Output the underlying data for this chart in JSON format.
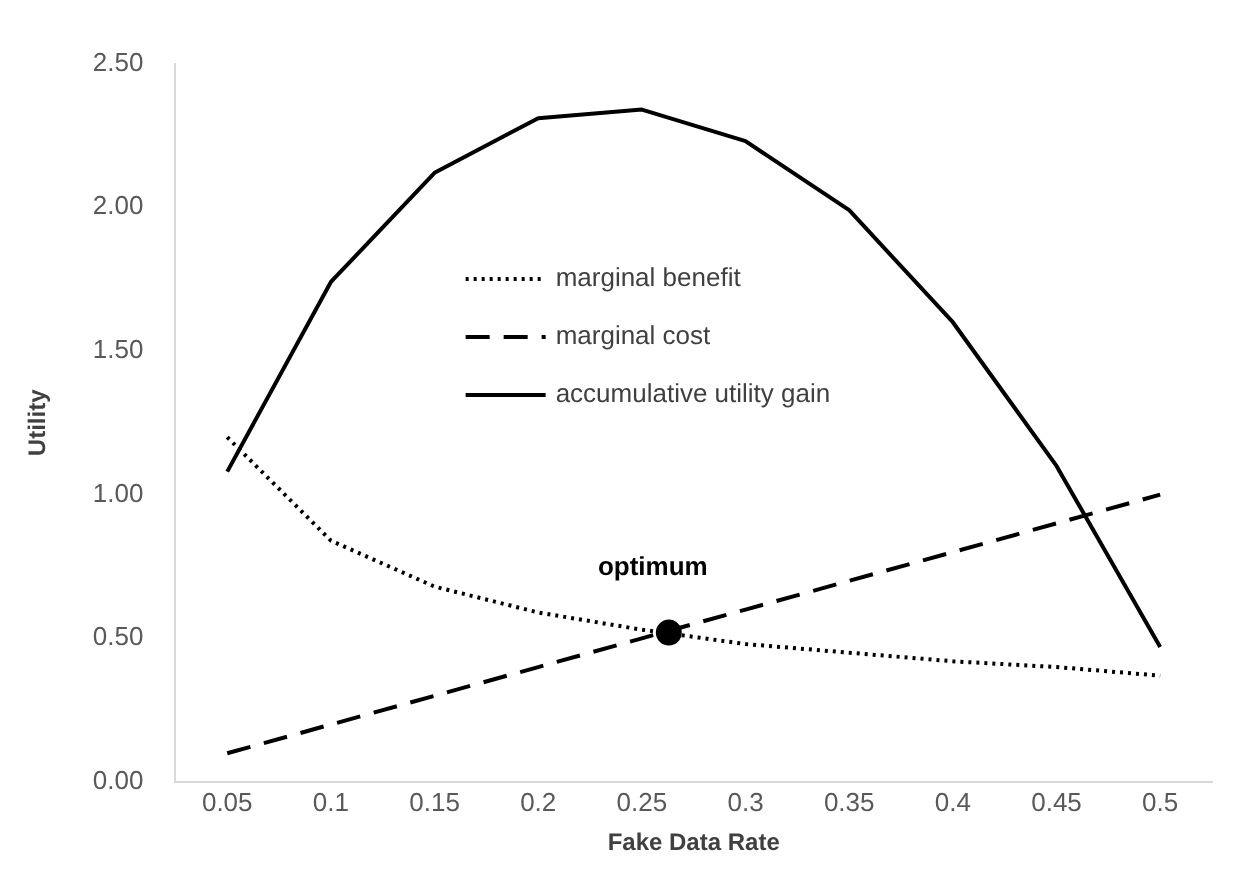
{
  "chart_data": {
    "type": "line",
    "xlabel": "Fake Data Rate",
    "ylabel": "Utility",
    "x": [
      0.05,
      0.1,
      0.15,
      0.2,
      0.25,
      0.3,
      0.35,
      0.4,
      0.45,
      0.5
    ],
    "xlim": [
      0.025,
      0.525
    ],
    "xticks": [
      0.05,
      0.1,
      0.15,
      0.2,
      0.25,
      0.3,
      0.35,
      0.4,
      0.45,
      0.5
    ],
    "ylim": [
      0,
      2.5
    ],
    "yticks": [
      {
        "value": 0,
        "label": "0.00"
      },
      {
        "value": 0.5,
        "label": "0.50"
      },
      {
        "value": 1,
        "label": "1.00"
      },
      {
        "value": 1.5,
        "label": "1.50"
      },
      {
        "value": 2,
        "label": "2.00"
      },
      {
        "value": 2.5,
        "label": "2.50"
      }
    ],
    "series": [
      {
        "name": "marginal benefit",
        "color": "#000000",
        "line_style": "dotted",
        "marker": "none",
        "values": [
          1.2,
          0.84,
          0.68,
          0.59,
          0.53,
          0.48,
          0.45,
          0.42,
          0.4,
          0.37
        ]
      },
      {
        "name": "marginal cost",
        "color": "#000000",
        "line_style": "dashed",
        "marker": "none",
        "values": [
          0.1,
          0.2,
          0.3,
          0.4,
          0.5,
          0.6,
          0.7,
          0.8,
          0.9,
          1.0
        ]
      },
      {
        "name": "accumulative utility gain",
        "color": "#000000",
        "line_style": "solid",
        "marker": "none",
        "values": [
          1.08,
          1.74,
          2.12,
          2.31,
          2.34,
          2.23,
          1.99,
          1.6,
          1.1,
          0.47
        ]
      },
      {
        "type": "scatter",
        "color": "#000000",
        "marker": "circle",
        "x": [
          0.263
        ],
        "values": [
          0.52
        ]
      }
    ],
    "annotations": [
      {
        "text": "optimum",
        "x": 0.263,
        "y": 0.52
      }
    ],
    "grid": false,
    "legend": "top"
  }
}
